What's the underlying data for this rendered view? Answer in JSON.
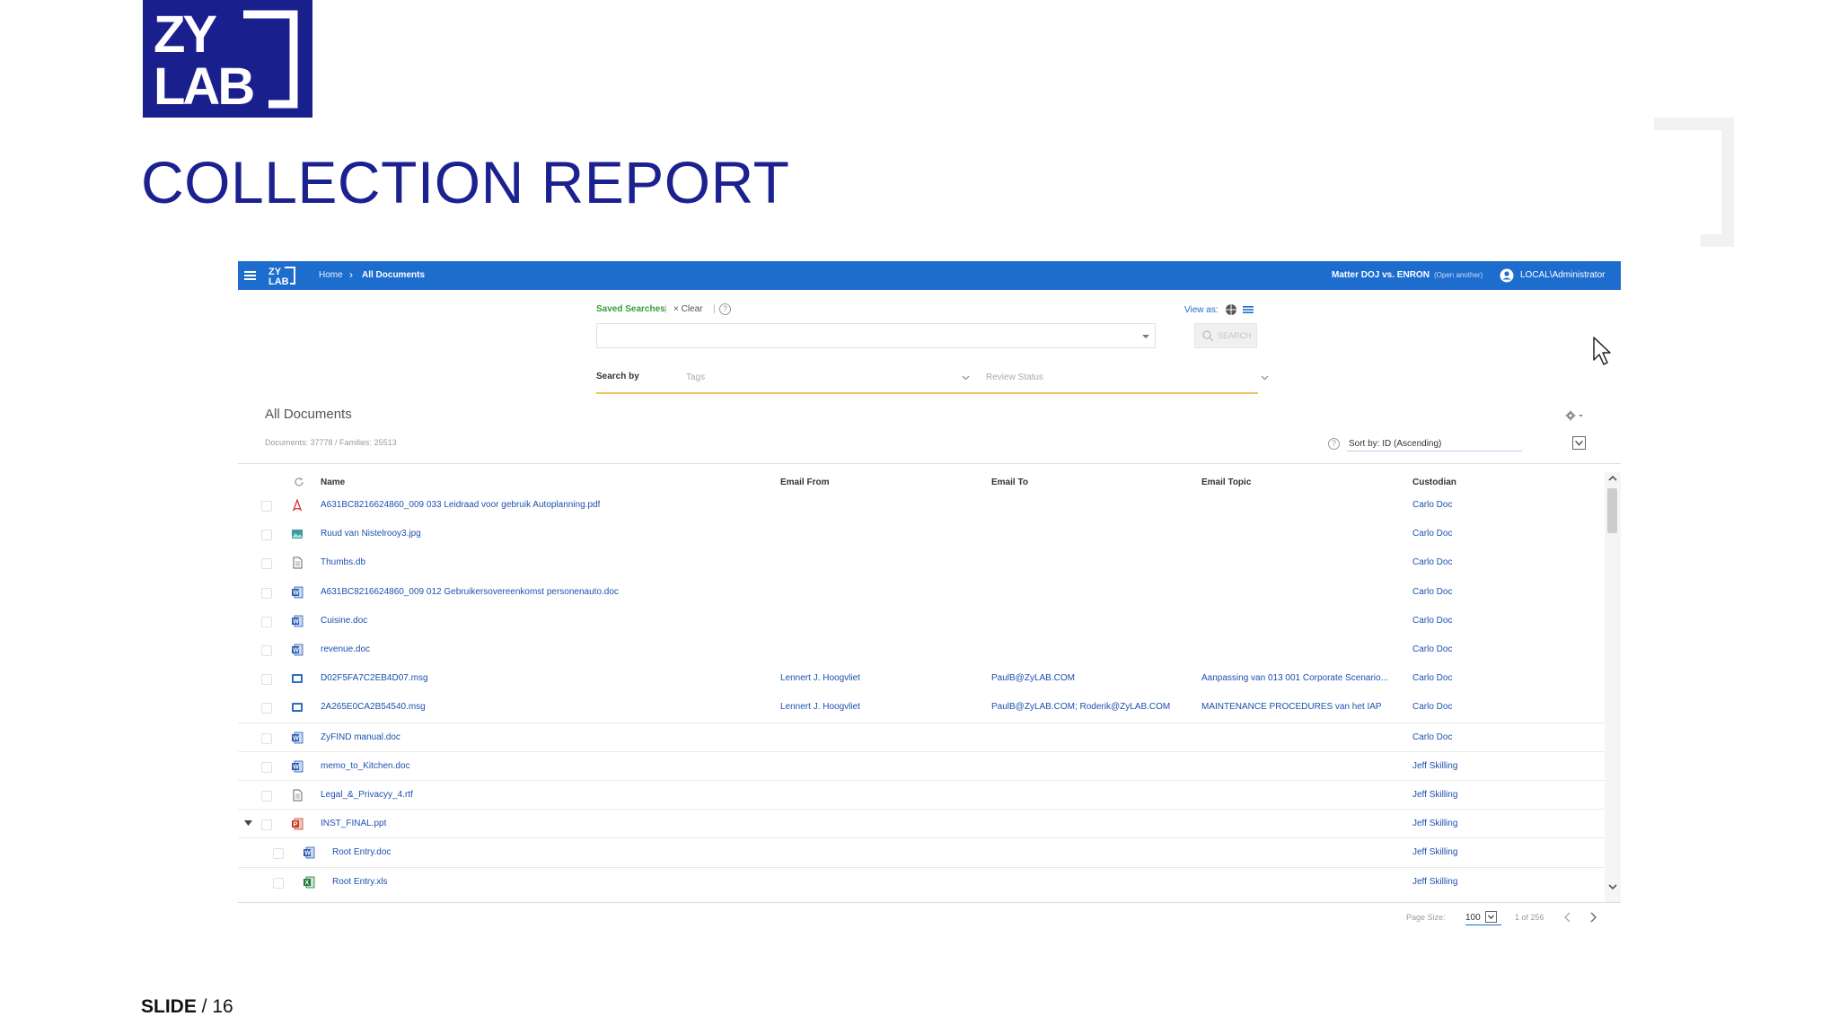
{
  "slide": {
    "logo_line1": "ZY",
    "logo_line2": "LAB",
    "title": "COLLECTION REPORT",
    "number_label": "SLIDE",
    "number_value": " / 16",
    "colors": {
      "brand_blue": "#1a1f8e",
      "app_blue": "#1d6dcf"
    }
  },
  "app": {
    "topbar": {
      "breadcrumb_home": "Home",
      "breadcrumb_sep": "›",
      "breadcrumb_current": "All Documents",
      "matter": "Matter DOJ vs. ENRON",
      "open_another": "(Open another)",
      "user": "LOCAL\\Administrator"
    },
    "search": {
      "saved_searches": "Saved Searches",
      "clear": "× Clear",
      "view_as": "View as:",
      "search_button": "SEARCH",
      "search_by": "Search by",
      "tags_placeholder": "Tags",
      "review_status_placeholder": "Review Status"
    },
    "list": {
      "title": "All Documents",
      "counts": "Documents: 37778 / Families: 25513",
      "sort_label": "Sort by: ID (Ascending)",
      "columns": [
        "Name",
        "Email From",
        "Email To",
        "Email Topic",
        "Custodian"
      ],
      "rows": [
        {
          "icon": "pdf-icon",
          "name": "A631BC8216624860_009 033 Leidraad voor gebruik Autoplanning.pdf",
          "from": "",
          "to": "",
          "topic": "",
          "custodian": "Carlo Doc"
        },
        {
          "icon": "image-icon",
          "name": "Ruud van Nistelrooy3.jpg",
          "from": "",
          "to": "",
          "topic": "",
          "custodian": "Carlo Doc"
        },
        {
          "icon": "text-file-icon",
          "name": "Thumbs.db",
          "from": "",
          "to": "",
          "topic": "",
          "custodian": "Carlo Doc"
        },
        {
          "icon": "word-icon",
          "name": "A631BC8216624860_009 012 Gebruikersovereenkomst personenauto.doc",
          "from": "",
          "to": "",
          "topic": "",
          "custodian": "Carlo Doc"
        },
        {
          "icon": "word-icon",
          "name": "Cuisine.doc",
          "from": "",
          "to": "",
          "topic": "",
          "custodian": "Carlo Doc"
        },
        {
          "icon": "word-icon",
          "name": "revenue.doc",
          "from": "",
          "to": "",
          "topic": "",
          "custodian": "Carlo Doc"
        },
        {
          "icon": "email-icon",
          "name": "D02F5FA7C2EB4D07.msg",
          "from": "Lennert J. Hoogvliet",
          "to": "PaulB@ZyLAB.COM",
          "topic": "Aanpassing van 013 001 Corporate Scenario...",
          "custodian": "Carlo Doc"
        },
        {
          "icon": "email-icon",
          "name": "2A265E0CA2B54540.msg",
          "from": "Lennert J. Hoogvliet",
          "to": "PaulB@ZyLAB.COM; Roderik@ZyLAB.COM",
          "topic": "MAINTENANCE PROCEDURES van het IAP",
          "custodian": "Carlo Doc"
        },
        {
          "icon": "word-icon",
          "name": "ZyFIND manual.doc",
          "from": "",
          "to": "",
          "topic": "",
          "custodian": "Carlo Doc"
        },
        {
          "icon": "word-icon",
          "name": "memo_to_Kitchen.doc",
          "from": "",
          "to": "",
          "topic": "",
          "custodian": "Jeff Skilling"
        },
        {
          "icon": "text-file-icon",
          "name": "Legal_&_Privacyy_4.rtf",
          "from": "",
          "to": "",
          "topic": "",
          "custodian": "Jeff Skilling"
        },
        {
          "icon": "powerpoint-icon",
          "name": "INST_FINAL.ppt",
          "from": "",
          "to": "",
          "topic": "",
          "custodian": "Jeff Skilling",
          "expanded": true
        },
        {
          "icon": "word-icon",
          "name": "Root Entry.doc",
          "from": "",
          "to": "",
          "topic": "",
          "custodian": "Jeff Skilling",
          "child": true
        },
        {
          "icon": "excel-icon",
          "name": "Root Entry.xls",
          "from": "",
          "to": "",
          "topic": "",
          "custodian": "Jeff Skilling",
          "child": true
        }
      ]
    },
    "pager": {
      "page_size_label": "Page Size:",
      "page_size": "100",
      "page_of": "1 of 256"
    }
  }
}
